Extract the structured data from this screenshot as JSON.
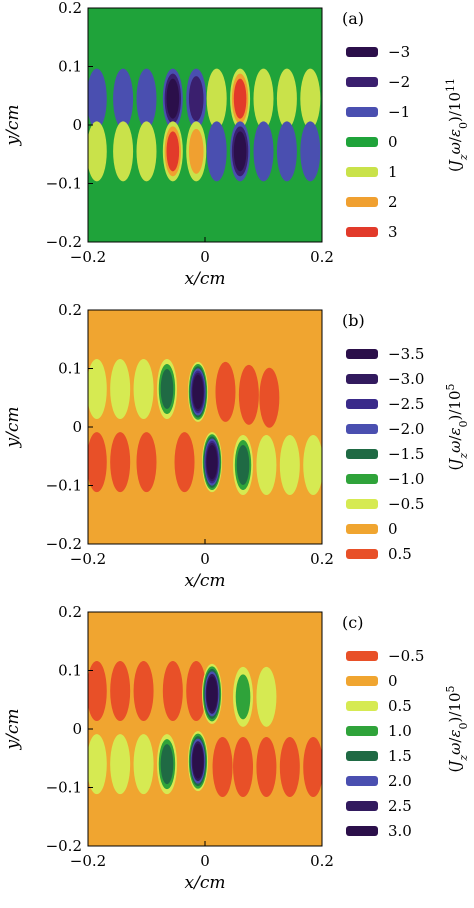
{
  "chart_data": [
    {
      "panel_label": "(a)",
      "type": "heatmap",
      "xlabel": "x/cm",
      "ylabel": "y/cm",
      "xlim": [
        -0.2,
        0.2
      ],
      "ylim": [
        -0.2,
        0.2
      ],
      "x_ticks": [
        "−0.2",
        "0",
        "0.2"
      ],
      "y_ticks": [
        "0.2",
        "0.1",
        "0",
        "−0.1",
        "−0.2"
      ],
      "colorbar_label": "(J_zω/ε₀)/10¹¹",
      "background": "#1fa33a",
      "legend": [
        {
          "label": "−3",
          "color": "#2b0f4a"
        },
        {
          "label": "−2",
          "color": "#3a1f6e"
        },
        {
          "label": "−1",
          "color": "#4a4fb0"
        },
        {
          "label": "0",
          "color": "#1fa33a"
        },
        {
          "label": "1",
          "color": "#c9e24a"
        },
        {
          "label": "2",
          "color": "#f0a030"
        },
        {
          "label": "3",
          "color": "#e23a2a"
        }
      ],
      "blobs": [
        {
          "x": -0.185,
          "y": 0.045,
          "level": -1
        },
        {
          "x": -0.14,
          "y": 0.045,
          "level": -1
        },
        {
          "x": -0.1,
          "y": 0.045,
          "level": -1
        },
        {
          "x": -0.055,
          "y": 0.045,
          "level": -3
        },
        {
          "x": -0.015,
          "y": 0.045,
          "level": -2
        },
        {
          "x": 0.02,
          "y": 0.045,
          "level": 1
        },
        {
          "x": 0.06,
          "y": 0.045,
          "level": 3
        },
        {
          "x": 0.1,
          "y": 0.045,
          "level": 1
        },
        {
          "x": 0.14,
          "y": 0.045,
          "level": 1
        },
        {
          "x": 0.18,
          "y": 0.045,
          "level": 1
        },
        {
          "x": -0.185,
          "y": -0.045,
          "level": 1
        },
        {
          "x": -0.14,
          "y": -0.045,
          "level": 1
        },
        {
          "x": -0.1,
          "y": -0.045,
          "level": 1
        },
        {
          "x": -0.055,
          "y": -0.045,
          "level": 3
        },
        {
          "x": -0.015,
          "y": -0.045,
          "level": 2
        },
        {
          "x": 0.02,
          "y": -0.045,
          "level": -1
        },
        {
          "x": 0.06,
          "y": -0.045,
          "level": -3
        },
        {
          "x": 0.1,
          "y": -0.045,
          "level": -1
        },
        {
          "x": 0.14,
          "y": -0.045,
          "level": -1
        },
        {
          "x": 0.18,
          "y": -0.045,
          "level": -1
        }
      ]
    },
    {
      "panel_label": "(b)",
      "type": "heatmap",
      "xlabel": "x/cm",
      "ylabel": "y/cm",
      "xlim": [
        -0.2,
        0.2
      ],
      "ylim": [
        -0.2,
        0.2
      ],
      "x_ticks": [
        "−0.2",
        "0",
        "0.2"
      ],
      "y_ticks": [
        "0.2",
        "0.1",
        "0",
        "−0.1",
        "−0.2"
      ],
      "colorbar_label": "(J_zω/ε₀)/10⁵",
      "background": "#f0a530",
      "legend": [
        {
          "label": "−3.5",
          "color": "#2b0f4a"
        },
        {
          "label": "−3.0",
          "color": "#321a5e"
        },
        {
          "label": "−2.5",
          "color": "#3a2a8a"
        },
        {
          "label": "−2.0",
          "color": "#4a4fb0"
        },
        {
          "label": "−1.5",
          "color": "#1f6a44"
        },
        {
          "label": "−1.0",
          "color": "#2fa33a"
        },
        {
          "label": "−0.5",
          "color": "#d6ea52"
        },
        {
          "label": "0",
          "color": "#f0a530"
        },
        {
          "label": "0.5",
          "color": "#e85028"
        }
      ],
      "blobs": [
        {
          "x": -0.185,
          "y": 0.065,
          "level": -0.5
        },
        {
          "x": -0.145,
          "y": 0.065,
          "level": -0.5
        },
        {
          "x": -0.105,
          "y": 0.065,
          "level": -0.5
        },
        {
          "x": -0.065,
          "y": 0.065,
          "level": -1.5
        },
        {
          "x": -0.012,
          "y": 0.06,
          "level": -3.5
        },
        {
          "x": 0.035,
          "y": 0.06,
          "level": 0.5
        },
        {
          "x": 0.075,
          "y": 0.055,
          "level": 0.5
        },
        {
          "x": 0.11,
          "y": 0.05,
          "level": 0.5
        },
        {
          "x": -0.185,
          "y": -0.06,
          "level": 0.5
        },
        {
          "x": -0.145,
          "y": -0.06,
          "level": 0.5
        },
        {
          "x": -0.1,
          "y": -0.06,
          "level": 0.5
        },
        {
          "x": -0.035,
          "y": -0.06,
          "level": 0.5
        },
        {
          "x": 0.012,
          "y": -0.06,
          "level": -3.5
        },
        {
          "x": 0.065,
          "y": -0.065,
          "level": -1.5
        },
        {
          "x": 0.105,
          "y": -0.065,
          "level": -0.5
        },
        {
          "x": 0.145,
          "y": -0.065,
          "level": -0.5
        },
        {
          "x": 0.185,
          "y": -0.065,
          "level": -0.5
        }
      ]
    },
    {
      "panel_label": "(c)",
      "type": "heatmap",
      "xlabel": "x/cm",
      "ylabel": "y/cm",
      "xlim": [
        -0.2,
        0.2
      ],
      "ylim": [
        -0.2,
        0.2
      ],
      "x_ticks": [
        "−0.2",
        "0",
        "0.2"
      ],
      "y_ticks": [
        "0.2",
        "0.1",
        "0",
        "−0.1",
        "−0.2"
      ],
      "colorbar_label": "(J_zω/ε₀)/10⁵",
      "background": "#f0a530",
      "legend": [
        {
          "label": "−0.5",
          "color": "#e85028"
        },
        {
          "label": "0",
          "color": "#f0a530"
        },
        {
          "label": "0.5",
          "color": "#d6ea52"
        },
        {
          "label": "1.0",
          "color": "#2fa33a"
        },
        {
          "label": "1.5",
          "color": "#1f6a44"
        },
        {
          "label": "2.0",
          "color": "#4a4fb0"
        },
        {
          "label": "2.5",
          "color": "#321a5e"
        },
        {
          "label": "3.0",
          "color": "#2b0f4a"
        }
      ],
      "blobs": [
        {
          "x": -0.185,
          "y": 0.065,
          "level": -0.5
        },
        {
          "x": -0.145,
          "y": 0.065,
          "level": -0.5
        },
        {
          "x": -0.105,
          "y": 0.065,
          "level": -0.5
        },
        {
          "x": -0.055,
          "y": 0.065,
          "level": -0.5
        },
        {
          "x": -0.015,
          "y": 0.065,
          "level": -0.5
        },
        {
          "x": 0.012,
          "y": 0.06,
          "level": 3.0
        },
        {
          "x": 0.065,
          "y": 0.055,
          "level": 1.0
        },
        {
          "x": 0.105,
          "y": 0.055,
          "level": 0.5
        },
        {
          "x": -0.185,
          "y": -0.06,
          "level": 0.5
        },
        {
          "x": -0.145,
          "y": -0.06,
          "level": 0.5
        },
        {
          "x": -0.105,
          "y": -0.06,
          "level": 0.5
        },
        {
          "x": -0.065,
          "y": -0.06,
          "level": 1.5
        },
        {
          "x": -0.012,
          "y": -0.055,
          "level": 3.0
        },
        {
          "x": 0.03,
          "y": -0.065,
          "level": -0.5
        },
        {
          "x": 0.065,
          "y": -0.065,
          "level": -0.5
        },
        {
          "x": 0.105,
          "y": -0.065,
          "level": -0.5
        },
        {
          "x": 0.145,
          "y": -0.065,
          "level": -0.5
        },
        {
          "x": 0.185,
          "y": -0.065,
          "level": -0.5
        }
      ]
    }
  ]
}
